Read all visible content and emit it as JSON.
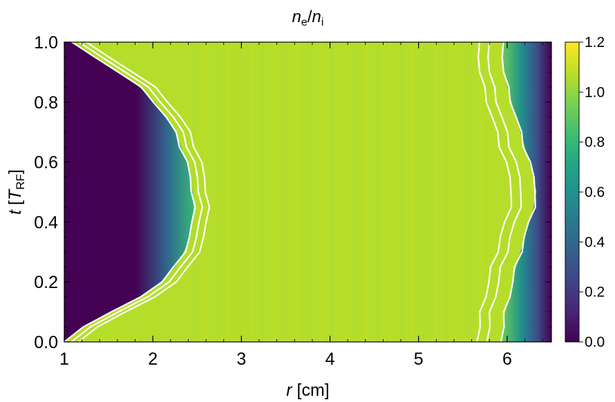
{
  "chart_data": {
    "type": "heatmap",
    "title": {
      "main": "n",
      "main_sub": "e",
      "sep": "/",
      "den": "n",
      "den_sub": "i"
    },
    "xlabel": {
      "var": "r",
      "unit": " [cm]"
    },
    "ylabel": {
      "var": "t",
      "pre": " [",
      "unit_main": "T",
      "unit_sub": "RF",
      "post": "]"
    },
    "xlim": [
      1,
      6.5
    ],
    "ylim": [
      0,
      1
    ],
    "x_ticks": [
      {
        "value": 1,
        "label": "1"
      },
      {
        "value": 2,
        "label": "2"
      },
      {
        "value": 3,
        "label": "3"
      },
      {
        "value": 4,
        "label": "4"
      },
      {
        "value": 5,
        "label": "5"
      },
      {
        "value": 6,
        "label": "6"
      }
    ],
    "y_ticks": [
      {
        "value": 0,
        "label": "0.0"
      },
      {
        "value": 0.2,
        "label": "0.2"
      },
      {
        "value": 0.4,
        "label": "0.4"
      },
      {
        "value": 0.6,
        "label": "0.6"
      },
      {
        "value": 0.8,
        "label": "0.8"
      },
      {
        "value": 1.0,
        "label": "1.0"
      }
    ],
    "colorbar": {
      "range": [
        0,
        1.2
      ],
      "colormap": "viridis",
      "ticks": [
        {
          "value": 0,
          "label": "0.0"
        },
        {
          "value": 0.2,
          "label": "0.2"
        },
        {
          "value": 0.4,
          "label": "0.4"
        },
        {
          "value": 0.6,
          "label": "0.6"
        },
        {
          "value": 0.8,
          "label": "0.8"
        },
        {
          "value": 1.0,
          "label": "1.0"
        },
        {
          "value": 1.2,
          "label": "1.2"
        }
      ]
    },
    "bulk_value": 1.04,
    "colors": {
      "low": "#440154",
      "mid": "#21918c",
      "bulk": "#b5de2b",
      "high": "#fde725",
      "contour": "#ffffff"
    },
    "left_sheath": {
      "edge_r": [
        {
          "t": 0.0,
          "r": 1.0
        },
        {
          "t": 0.05,
          "r": 1.2
        },
        {
          "t": 0.1,
          "r": 1.55
        },
        {
          "t": 0.15,
          "r": 1.85
        },
        {
          "t": 0.2,
          "r": 2.1
        },
        {
          "t": 0.25,
          "r": 2.25
        },
        {
          "t": 0.3,
          "r": 2.35
        },
        {
          "t": 0.35,
          "r": 2.42
        },
        {
          "t": 0.4,
          "r": 2.45
        },
        {
          "t": 0.45,
          "r": 2.46
        },
        {
          "t": 0.5,
          "r": 2.45
        },
        {
          "t": 0.55,
          "r": 2.42
        },
        {
          "t": 0.6,
          "r": 2.38
        },
        {
          "t": 0.65,
          "r": 2.32
        },
        {
          "t": 0.7,
          "r": 2.25
        },
        {
          "t": 0.75,
          "r": 2.15
        },
        {
          "t": 0.8,
          "r": 2.02
        },
        {
          "t": 0.85,
          "r": 1.85
        },
        {
          "t": 0.9,
          "r": 1.62
        },
        {
          "t": 0.95,
          "r": 1.35
        },
        {
          "t": 1.0,
          "r": 1.07
        }
      ],
      "contour_offsets": [
        0,
        0.08,
        0.16
      ]
    },
    "right_sheath": {
      "edge_r": [
        {
          "t": 0.0,
          "r": 5.93
        },
        {
          "t": 0.05,
          "r": 5.95
        },
        {
          "t": 0.1,
          "r": 5.98
        },
        {
          "t": 0.15,
          "r": 6.02
        },
        {
          "t": 0.2,
          "r": 6.06
        },
        {
          "t": 0.25,
          "r": 6.1
        },
        {
          "t": 0.3,
          "r": 6.15
        },
        {
          "t": 0.35,
          "r": 6.2
        },
        {
          "t": 0.4,
          "r": 6.25
        },
        {
          "t": 0.45,
          "r": 6.3
        },
        {
          "t": 0.5,
          "r": 6.33
        },
        {
          "t": 0.55,
          "r": 6.3
        },
        {
          "t": 0.6,
          "r": 6.25
        },
        {
          "t": 0.65,
          "r": 6.2
        },
        {
          "t": 0.7,
          "r": 6.15
        },
        {
          "t": 0.75,
          "r": 6.1
        },
        {
          "t": 0.8,
          "r": 6.05
        },
        {
          "t": 0.85,
          "r": 6.0
        },
        {
          "t": 0.9,
          "r": 5.97
        },
        {
          "t": 0.95,
          "r": 5.95
        },
        {
          "t": 1.0,
          "r": 5.94
        }
      ],
      "contour_offsets": [
        -0.27,
        -0.16,
        0.0
      ]
    }
  }
}
